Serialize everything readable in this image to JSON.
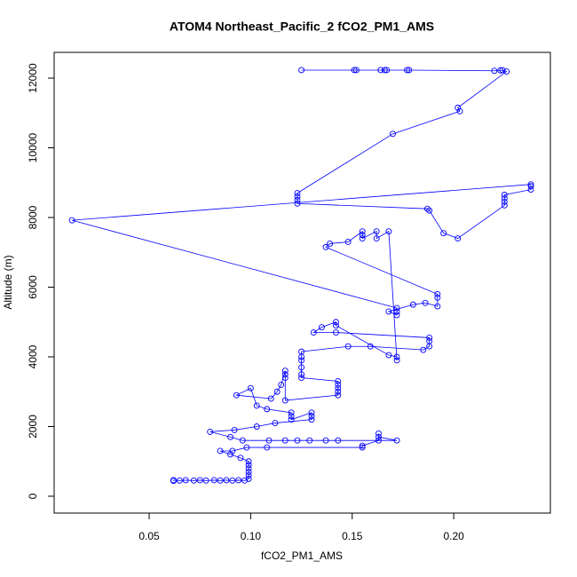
{
  "chart_data": {
    "type": "line",
    "markers": "circle",
    "color": "#0000ff",
    "title": "ATOM4 Northeast_Pacific_2 fCO2_PM1_AMS",
    "x_label": "fCO2_PM1_AMS",
    "y_label": "Altitude (m)",
    "xlim": [
      0.0032,
      0.2476
    ],
    "ylim": [
      -484,
      12739
    ],
    "xticks": [
      0.05,
      {
        "value": 0.1,
        "label": "0.10"
      },
      0.15,
      {
        "value": 0.2,
        "label": "0.20"
      }
    ],
    "yticks": [
      0,
      2000,
      4000,
      6000,
      8000,
      10000,
      12000
    ],
    "x": [
      0.125,
      0.151,
      0.152,
      0.164,
      0.166,
      0.167,
      0.177,
      0.178,
      0.22,
      0.223,
      0.224,
      0.226,
      0.202,
      0.203,
      0.17,
      0.123,
      0.123,
      0.123,
      0.123,
      0.187,
      0.188,
      0.195,
      0.202,
      0.225,
      0.225,
      0.225,
      0.225,
      0.238,
      0.238,
      0.238,
      0.012,
      0.172,
      0.172,
      0.172,
      0.168,
      0.18,
      0.186,
      0.192,
      0.192,
      0.192,
      0.137,
      0.139,
      0.148,
      0.155,
      0.155,
      0.155,
      0.162,
      0.162,
      0.168,
      0.172,
      0.172,
      0.168,
      0.142,
      0.142,
      0.135,
      0.131,
      0.142,
      0.188,
      0.188,
      0.188,
      0.185,
      0.159,
      0.148,
      0.125,
      0.125,
      0.125,
      0.125,
      0.125,
      0.125,
      0.143,
      0.143,
      0.143,
      0.143,
      0.143,
      0.117,
      0.117,
      0.117,
      0.117,
      0.115,
      0.113,
      0.11,
      0.093,
      0.1,
      0.103,
      0.108,
      0.12,
      0.12,
      0.12,
      0.13,
      0.13,
      0.13,
      0.112,
      0.103,
      0.092,
      0.08,
      0.09,
      0.096,
      0.109,
      0.117,
      0.123,
      0.129,
      0.137,
      0.143,
      0.172,
      0.163,
      0.163,
      0.163,
      0.155,
      0.155,
      0.108,
      0.098,
      0.091,
      0.085,
      0.09,
      0.095,
      0.099,
      0.099,
      0.099,
      0.099,
      0.099,
      0.099,
      0.097,
      0.094,
      0.091,
      0.088,
      0.085,
      0.082,
      0.078,
      0.075,
      0.072,
      0.068,
      0.065,
      0.062,
      0.062
    ],
    "values": [
      12230,
      12230,
      12230,
      12230,
      12230,
      12230,
      12230,
      12230,
      12210,
      12220,
      12230,
      12190,
      11150,
      11050,
      10400,
      8700,
      8600,
      8500,
      8400,
      8250,
      8200,
      7550,
      7400,
      8350,
      8450,
      8550,
      8650,
      8800,
      8900,
      8950,
      7920,
      5400,
      5300,
      5200,
      5300,
      5500,
      5550,
      5450,
      5700,
      5800,
      7150,
      7250,
      7300,
      7600,
      7500,
      7400,
      7600,
      7400,
      7600,
      3900,
      4000,
      4050,
      4900,
      5000,
      4850,
      4700,
      4700,
      4550,
      4450,
      4300,
      4200,
      4300,
      4300,
      4150,
      4000,
      3900,
      3700,
      3500,
      3400,
      3300,
      3200,
      3100,
      3000,
      2900,
      2750,
      3400,
      3500,
      3600,
      3200,
      3000,
      2800,
      2900,
      3100,
      2600,
      2500,
      2400,
      2300,
      2200,
      2400,
      2300,
      2200,
      2100,
      2000,
      1900,
      1850,
      1700,
      1600,
      1600,
      1600,
      1600,
      1600,
      1600,
      1600,
      1600,
      1700,
      1800,
      1600,
      1450,
      1400,
      1400,
      1400,
      1300,
      1300,
      1200,
      1100,
      1000,
      900,
      800,
      700,
      600,
      500,
      450,
      460,
      450,
      460,
      450,
      460,
      450,
      460,
      450,
      460,
      450,
      460,
      440
    ]
  }
}
